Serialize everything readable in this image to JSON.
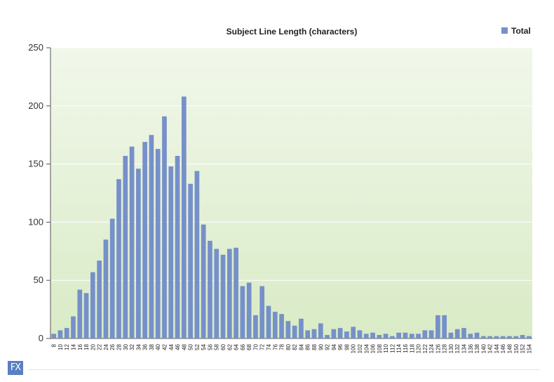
{
  "chart_data": {
    "type": "bar",
    "title": "Subject Line Length (characters)",
    "xlabel": "",
    "ylabel": "",
    "ylim": [
      0,
      250
    ],
    "yticks": [
      0,
      50,
      100,
      150,
      200,
      250
    ],
    "legend": "top-right",
    "grid": true,
    "colors": {
      "bar": "#7690c9",
      "band_top": "#f1f7ea",
      "band_bottom": "#d9ebc6"
    },
    "categories": [
      8,
      10,
      12,
      14,
      16,
      18,
      20,
      22,
      24,
      26,
      28,
      30,
      32,
      34,
      36,
      38,
      40,
      42,
      44,
      46,
      48,
      50,
      52,
      54,
      56,
      58,
      60,
      62,
      64,
      66,
      68,
      70,
      72,
      74,
      76,
      78,
      80,
      82,
      84,
      86,
      88,
      90,
      92,
      94,
      96,
      98,
      100,
      102,
      104,
      106,
      108,
      110,
      112,
      114,
      116,
      118,
      120,
      122,
      124,
      126,
      128,
      130,
      132,
      134,
      136,
      138,
      140,
      142,
      144,
      146,
      148,
      150,
      152,
      154
    ],
    "series": [
      {
        "name": "Total",
        "values": [
          4,
          7,
          9,
          19,
          42,
          39,
          57,
          67,
          85,
          103,
          137,
          157,
          165,
          146,
          169,
          175,
          163,
          191,
          148,
          157,
          208,
          133,
          144,
          98,
          84,
          77,
          72,
          77,
          78,
          45,
          48,
          20,
          45,
          28,
          23,
          21,
          15,
          11,
          17,
          7,
          8,
          13,
          3,
          8,
          9,
          6,
          10,
          7,
          4,
          5,
          3,
          4,
          2,
          5,
          5,
          4,
          4,
          7,
          7,
          20,
          20,
          5,
          8,
          9,
          4,
          5,
          2,
          2,
          2,
          2,
          2,
          2,
          3,
          2
        ]
      }
    ]
  },
  "logo_text": "FX"
}
